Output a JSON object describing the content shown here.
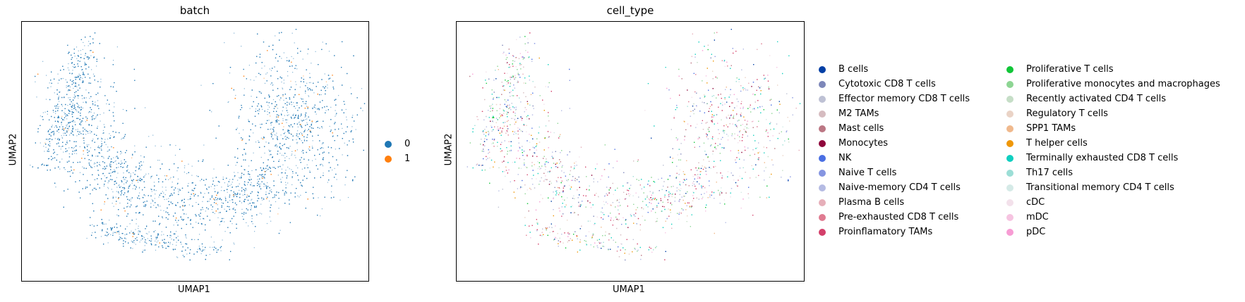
{
  "chart_data": [
    {
      "type": "scatter",
      "title": "batch",
      "xlabel": "UMAP1",
      "ylabel": "UMAP2",
      "legend_position": "right",
      "series": [
        {
          "name": "0",
          "color": "#1f77b4"
        },
        {
          "name": "1",
          "color": "#ff7f0e"
        }
      ]
    },
    {
      "type": "scatter",
      "title": "cell_type",
      "xlabel": "UMAP1",
      "ylabel": "UMAP2",
      "legend_position": "right",
      "series": [
        {
          "name": "B cells",
          "color": "#023fa5"
        },
        {
          "name": "Cytotoxic CD8 T cells",
          "color": "#7d87b9"
        },
        {
          "name": "Effector memory CD8 T cells",
          "color": "#bec1d4"
        },
        {
          "name": "M2 TAMs",
          "color": "#d6bcc0"
        },
        {
          "name": "Mast cells",
          "color": "#bb7784"
        },
        {
          "name": "Monocytes",
          "color": "#8e063b"
        },
        {
          "name": "NK",
          "color": "#4a6fe3"
        },
        {
          "name": "Naive T cells",
          "color": "#8595e1"
        },
        {
          "name": "Naive-memory CD4 T cells",
          "color": "#b5bbe3"
        },
        {
          "name": "Plasma B cells",
          "color": "#e6afb9"
        },
        {
          "name": "Pre-exhausted CD8 T cells",
          "color": "#e07b91"
        },
        {
          "name": "Proinflamatory TAMs",
          "color": "#d33f6a"
        },
        {
          "name": "Proliferative T cells",
          "color": "#11c638"
        },
        {
          "name": "Proliferative monocytes and macrophages",
          "color": "#8dd593"
        },
        {
          "name": "Recently activated CD4 T cells",
          "color": "#c6dec7"
        },
        {
          "name": "Regulatory T cells",
          "color": "#ead3c6"
        },
        {
          "name": "SPP1 TAMs",
          "color": "#f0b98d"
        },
        {
          "name": "T helper cells",
          "color": "#ef9708"
        },
        {
          "name": "Terminally exhausted CD8 T cells",
          "color": "#0fcfc0"
        },
        {
          "name": "Th17 cells",
          "color": "#9cded6"
        },
        {
          "name": "Transitional memory CD4 T cells",
          "color": "#d5eae7"
        },
        {
          "name": "cDC",
          "color": "#f3e1eb"
        },
        {
          "name": "mDC",
          "color": "#f6c4e1"
        },
        {
          "name": "pDC",
          "color": "#f79cd4"
        }
      ]
    }
  ]
}
